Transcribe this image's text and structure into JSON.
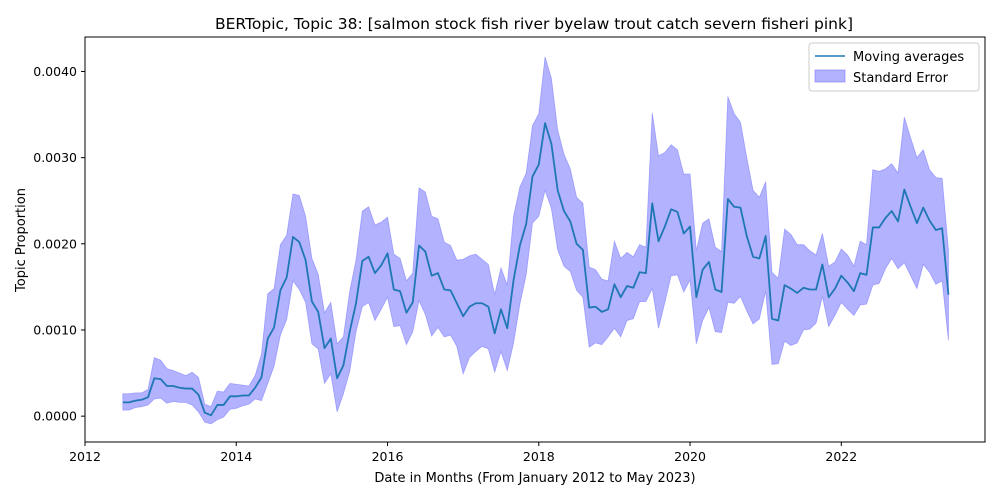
{
  "chart_data": {
    "type": "line",
    "title": "BERTopic, Topic 38: [salmon stock fish river byelaw trout catch severn fisheri pink]",
    "xlabel": "Date in Months (From January 2012 to May 2023)",
    "ylabel": "Topic Proportion",
    "xlim": [
      2012.0,
      2023.9
    ],
    "ylim": [
      -0.0003,
      0.0044
    ],
    "x_ticks": [
      2012,
      2014,
      2016,
      2018,
      2020,
      2022
    ],
    "y_ticks": [
      "0.0000",
      "0.0010",
      "0.0020",
      "0.0030",
      "0.0040"
    ],
    "grid": false,
    "legend_position": "top-right",
    "colors": {
      "line": "#1f77b4",
      "band": "#0000ff",
      "band_edge": "#6a6aff"
    },
    "legend": {
      "line_label": "Moving averages",
      "band_label": "Standard Error"
    },
    "x_start": 2012.5,
    "x_step_months": 1,
    "series": [
      {
        "name": "Moving averages",
        "values": [
          0.00016,
          0.00016,
          0.00018,
          0.00019,
          0.00022,
          0.00044,
          0.00043,
          0.00035,
          0.00035,
          0.00033,
          0.00032,
          0.00032,
          0.00025,
          4e-05,
          1e-05,
          0.00013,
          0.00013,
          0.00023,
          0.00023,
          0.00024,
          0.00024,
          0.00033,
          0.00045,
          0.0009,
          0.00103,
          0.00146,
          0.00161,
          0.00208,
          0.00202,
          0.00181,
          0.00133,
          0.00121,
          0.00079,
          0.0009,
          0.00044,
          0.00059,
          0.00098,
          0.00131,
          0.0018,
          0.00185,
          0.00166,
          0.00175,
          0.00189,
          0.00147,
          0.00145,
          0.0012,
          0.00132,
          0.00198,
          0.00191,
          0.00163,
          0.00166,
          0.00147,
          0.00146,
          0.00131,
          0.00116,
          0.00127,
          0.00131,
          0.00131,
          0.00127,
          0.00096,
          0.00124,
          0.00102,
          0.00158,
          0.00198,
          0.00223,
          0.00278,
          0.00292,
          0.0034,
          0.00316,
          0.00262,
          0.00238,
          0.00226,
          0.002,
          0.00193,
          0.00126,
          0.00127,
          0.00121,
          0.00124,
          0.00153,
          0.00138,
          0.00151,
          0.00149,
          0.00167,
          0.00166,
          0.00247,
          0.00203,
          0.0022,
          0.0024,
          0.00237,
          0.00212,
          0.0022,
          0.00138,
          0.0017,
          0.00179,
          0.00147,
          0.00144,
          0.00252,
          0.00243,
          0.00242,
          0.00209,
          0.00185,
          0.00183,
          0.00209,
          0.00113,
          0.00111,
          0.00152,
          0.00148,
          0.00143,
          0.00149,
          0.00147,
          0.00147,
          0.00176,
          0.00138,
          0.00148,
          0.00163,
          0.00155,
          0.00145,
          0.00166,
          0.00164,
          0.00219,
          0.00219,
          0.0023,
          0.00238,
          0.00226,
          0.00263,
          0.00243,
          0.00224,
          0.00242,
          0.00227,
          0.00216,
          0.00218,
          0.00141
        ]
      }
    ],
    "error_band": {
      "name": "Standard Error",
      "lower": [
        7e-05,
        7e-05,
        0.0001,
        0.00011,
        0.00013,
        0.0002,
        0.00021,
        0.00015,
        0.00017,
        0.00016,
        0.00016,
        0.00013,
        5e-05,
        -7e-05,
        -9e-05,
        -4e-05,
        -1e-05,
        8e-05,
        9e-05,
        0.00012,
        0.00014,
        0.0002,
        0.00018,
        0.00038,
        0.00058,
        0.00094,
        0.00112,
        0.00157,
        0.00147,
        0.00132,
        0.00084,
        0.00078,
        0.00038,
        0.00049,
        5e-05,
        0.00026,
        0.00052,
        0.00098,
        0.00127,
        0.00132,
        0.00111,
        0.00124,
        0.00138,
        0.00104,
        0.00105,
        0.00083,
        0.00098,
        0.00134,
        0.00118,
        0.00093,
        0.00103,
        0.00092,
        0.00094,
        0.00081,
        0.00049,
        0.00068,
        0.00075,
        0.00081,
        0.00078,
        0.00051,
        0.00075,
        0.00053,
        0.00085,
        0.0013,
        0.00164,
        0.00224,
        0.00232,
        0.00262,
        0.00241,
        0.00193,
        0.00174,
        0.00168,
        0.00146,
        0.00138,
        0.0008,
        0.00085,
        0.00083,
        0.00092,
        0.00102,
        0.00092,
        0.00111,
        0.00113,
        0.00133,
        0.00133,
        0.00148,
        0.00102,
        0.00132,
        0.00163,
        0.00164,
        0.00144,
        0.00158,
        0.00084,
        0.00111,
        0.00126,
        0.00098,
        0.00097,
        0.00132,
        0.00131,
        0.00139,
        0.00122,
        0.00107,
        0.00113,
        0.00145,
        0.0006,
        0.00061,
        0.00087,
        0.00082,
        0.00085,
        0.001,
        0.00101,
        0.00108,
        0.00139,
        0.00104,
        0.00117,
        0.00132,
        0.00124,
        0.00117,
        0.00129,
        0.0013,
        0.00152,
        0.00154,
        0.00171,
        0.00183,
        0.00171,
        0.00178,
        0.00163,
        0.00148,
        0.00176,
        0.00167,
        0.00153,
        0.00157,
        0.00088
      ],
      "upper": [
        0.00026,
        0.00026,
        0.00027,
        0.00027,
        0.00031,
        0.00068,
        0.00065,
        0.00055,
        0.00053,
        0.0005,
        0.00047,
        0.00051,
        0.00045,
        0.00014,
        0.00011,
        0.00029,
        0.00028,
        0.00038,
        0.00037,
        0.00036,
        0.00035,
        0.00047,
        0.00072,
        0.00142,
        0.00148,
        0.00199,
        0.0021,
        0.00258,
        0.00256,
        0.00232,
        0.00183,
        0.00165,
        0.0012,
        0.00132,
        0.00084,
        0.00092,
        0.00145,
        0.00181,
        0.00238,
        0.00243,
        0.00222,
        0.00225,
        0.00231,
        0.00188,
        0.00183,
        0.00157,
        0.00166,
        0.00265,
        0.0026,
        0.00232,
        0.00229,
        0.00202,
        0.00198,
        0.00181,
        0.00182,
        0.00186,
        0.00188,
        0.00182,
        0.00176,
        0.00141,
        0.00172,
        0.00152,
        0.00232,
        0.00266,
        0.00282,
        0.00337,
        0.00351,
        0.00417,
        0.00392,
        0.00332,
        0.00304,
        0.00287,
        0.00254,
        0.00247,
        0.00173,
        0.0017,
        0.00159,
        0.00157,
        0.00203,
        0.00183,
        0.0019,
        0.00185,
        0.00199,
        0.00196,
        0.00352,
        0.00302,
        0.00306,
        0.00315,
        0.00309,
        0.00281,
        0.00281,
        0.00192,
        0.00224,
        0.00229,
        0.00196,
        0.00191,
        0.00371,
        0.00351,
        0.00341,
        0.003,
        0.00262,
        0.00254,
        0.00272,
        0.00167,
        0.0016,
        0.00217,
        0.00211,
        0.00199,
        0.00199,
        0.00192,
        0.00187,
        0.00212,
        0.00174,
        0.00179,
        0.00194,
        0.00187,
        0.00174,
        0.00203,
        0.00199,
        0.00286,
        0.00284,
        0.00287,
        0.00293,
        0.00282,
        0.00347,
        0.00323,
        0.003,
        0.00309,
        0.00286,
        0.00277,
        0.00276,
        0.00193
      ]
    }
  }
}
